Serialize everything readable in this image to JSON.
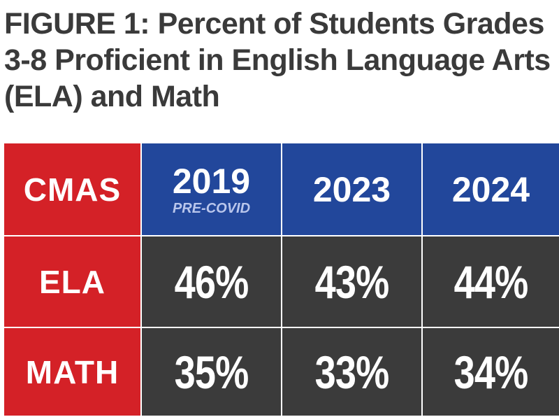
{
  "title": "FIGURE 1: Percent of Students Grades 3-8 Proficient in English Language Arts (ELA) and Math",
  "colors": {
    "header_red": "#d42127",
    "header_blue": "#22479b",
    "cell_dark": "#3b3b3b",
    "text": "#ffffff",
    "subtitle": "#b9c6ec",
    "title": "#3a3a3a"
  },
  "chart_data": {
    "type": "table",
    "title": "FIGURE 1: Percent of Students Grades 3-8 Proficient in English Language Arts (ELA) and Math",
    "corner_label": "CMAS",
    "columns": [
      {
        "year": "2019",
        "note": "PRE-COVID"
      },
      {
        "year": "2023",
        "note": ""
      },
      {
        "year": "2024",
        "note": ""
      }
    ],
    "rows": [
      {
        "label": "ELA",
        "values": [
          "46%",
          "43%",
          "44%"
        ]
      },
      {
        "label": "MATH",
        "values": [
          "35%",
          "33%",
          "34%"
        ]
      }
    ]
  }
}
